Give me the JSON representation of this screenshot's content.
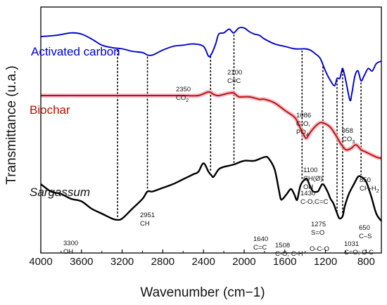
{
  "chart_data": {
    "type": "line",
    "xlabel": "Wavenumber (cm−1)",
    "ylabel": "Transmittance (u.a.)",
    "xlim": [
      4000,
      650
    ],
    "x_reversed": true,
    "ylim": [
      0,
      100
    ],
    "y_ticks_shown": false,
    "x_ticks": [
      4000,
      3600,
      3200,
      2800,
      2400,
      2000,
      1600,
      1200,
      800
    ],
    "series": [
      {
        "name": "Activated carbon",
        "color": "#0000cc",
        "points": [
          [
            4000,
            88
          ],
          [
            3850,
            88.5
          ],
          [
            3700,
            89.5
          ],
          [
            3600,
            89
          ],
          [
            3500,
            87
          ],
          [
            3400,
            84.5
          ],
          [
            3300,
            83.5
          ],
          [
            3200,
            83
          ],
          [
            3100,
            82
          ],
          [
            3000,
            81.5
          ],
          [
            2950,
            80.5
          ],
          [
            2900,
            80.5
          ],
          [
            2800,
            82.5
          ],
          [
            2700,
            84
          ],
          [
            2600,
            84.5
          ],
          [
            2500,
            85
          ],
          [
            2400,
            84
          ],
          [
            2350,
            80
          ],
          [
            2320,
            81
          ],
          [
            2280,
            85
          ],
          [
            2250,
            89
          ],
          [
            2200,
            89.5
          ],
          [
            2150,
            91
          ],
          [
            2120,
            90
          ],
          [
            2100,
            89.5
          ],
          [
            2050,
            91.5
          ],
          [
            2000,
            91.5
          ],
          [
            1950,
            90
          ],
          [
            1900,
            89
          ],
          [
            1850,
            88.5
          ],
          [
            1800,
            87
          ],
          [
            1700,
            85
          ],
          [
            1600,
            84
          ],
          [
            1500,
            83
          ],
          [
            1400,
            83
          ],
          [
            1350,
            82.5
          ],
          [
            1300,
            81
          ],
          [
            1250,
            79
          ],
          [
            1200,
            74
          ],
          [
            1150,
            70
          ],
          [
            1110,
            68
          ],
          [
            1086,
            71
          ],
          [
            1060,
            71
          ],
          [
            1040,
            74
          ],
          [
            1030,
            75
          ],
          [
            1010,
            72
          ],
          [
            990,
            68
          ],
          [
            958,
            62
          ],
          [
            940,
            65
          ],
          [
            910,
            72
          ],
          [
            880,
            74
          ],
          [
            850,
            70
          ],
          [
            820,
            72
          ],
          [
            780,
            75
          ],
          [
            740,
            74
          ],
          [
            700,
            77
          ],
          [
            650,
            78
          ]
        ]
      },
      {
        "name": "Biochar",
        "color": "#bb1100",
        "points": [
          [
            4000,
            64
          ],
          [
            3800,
            64
          ],
          [
            3600,
            64
          ],
          [
            3400,
            64
          ],
          [
            3200,
            64
          ],
          [
            3000,
            64
          ],
          [
            2800,
            64
          ],
          [
            2600,
            64
          ],
          [
            2450,
            64
          ],
          [
            2350,
            65.5
          ],
          [
            2300,
            64.5
          ],
          [
            2250,
            64
          ],
          [
            2150,
            65
          ],
          [
            2100,
            65
          ],
          [
            2050,
            63.5
          ],
          [
            1950,
            63.5
          ],
          [
            1850,
            62.5
          ],
          [
            1800,
            62.5
          ],
          [
            1700,
            61
          ],
          [
            1600,
            58
          ],
          [
            1500,
            55
          ],
          [
            1450,
            51
          ],
          [
            1400,
            47
          ],
          [
            1380,
            47
          ],
          [
            1350,
            49
          ],
          [
            1300,
            51.5
          ],
          [
            1250,
            53
          ],
          [
            1200,
            52.5
          ],
          [
            1150,
            51
          ],
          [
            1100,
            48
          ],
          [
            1050,
            44.5
          ],
          [
            1000,
            42
          ],
          [
            950,
            42.5
          ],
          [
            900,
            44
          ],
          [
            850,
            42
          ],
          [
            800,
            41
          ],
          [
            700,
            39
          ],
          [
            650,
            38.5
          ]
        ]
      },
      {
        "name": "Sargassum",
        "color": "#000000",
        "points": [
          [
            4000,
            28
          ],
          [
            3900,
            25
          ],
          [
            3800,
            24
          ],
          [
            3700,
            22
          ],
          [
            3600,
            21
          ],
          [
            3500,
            18
          ],
          [
            3400,
            16
          ],
          [
            3300,
            14
          ],
          [
            3250,
            13.5
          ],
          [
            3200,
            14
          ],
          [
            3100,
            18
          ],
          [
            3000,
            22
          ],
          [
            2951,
            25
          ],
          [
            2900,
            25
          ],
          [
            2800,
            26.5
          ],
          [
            2700,
            28
          ],
          [
            2600,
            30
          ],
          [
            2500,
            32
          ],
          [
            2450,
            33
          ],
          [
            2400,
            36.5
          ],
          [
            2350,
            33
          ],
          [
            2320,
            31.5
          ],
          [
            2300,
            31
          ],
          [
            2250,
            34
          ],
          [
            2200,
            35
          ],
          [
            2100,
            36
          ],
          [
            2000,
            37.5
          ],
          [
            1900,
            37.5
          ],
          [
            1800,
            39
          ],
          [
            1760,
            38.5
          ],
          [
            1700,
            34
          ],
          [
            1660,
            26
          ],
          [
            1640,
            22
          ],
          [
            1620,
            22
          ],
          [
            1580,
            24
          ],
          [
            1540,
            26
          ],
          [
            1508,
            24
          ],
          [
            1480,
            21.5
          ],
          [
            1460,
            25
          ],
          [
            1440,
            28
          ],
          [
            1400,
            30
          ],
          [
            1380,
            30
          ],
          [
            1350,
            27
          ],
          [
            1320,
            25
          ],
          [
            1275,
            25
          ],
          [
            1260,
            26
          ],
          [
            1225,
            28
          ],
          [
            1180,
            25
          ],
          [
            1150,
            22
          ],
          [
            1120,
            20
          ],
          [
            1080,
            15.5
          ],
          [
            1060,
            14
          ],
          [
            1031,
            15
          ],
          [
            1010,
            19
          ],
          [
            970,
            24
          ],
          [
            920,
            28
          ],
          [
            880,
            31
          ],
          [
            850,
            31
          ],
          [
            800,
            29
          ],
          [
            750,
            23
          ],
          [
            700,
            16
          ],
          [
            650,
            13
          ]
        ]
      }
    ],
    "labels": {
      "activated": "Activated carbon",
      "biochar": "Biochar",
      "sargassum": "Sargassum"
    },
    "annotations": [
      {
        "lines": [
          "3300",
          "OH"
        ],
        "wavenumber": 3245,
        "sub": null
      },
      {
        "lines": [
          "2951",
          "CH"
        ],
        "wavenumber": 2951,
        "sub": null
      },
      {
        "lines": [
          "2350",
          "CO"
        ],
        "wavenumber": 2330,
        "sub": "2"
      },
      {
        "lines": [
          "2100",
          "C≡C"
        ],
        "wavenumber": 2100,
        "sub": null
      },
      {
        "lines": [
          "1640",
          "C=C"
        ],
        "wavenumber": 1640,
        "sub": null
      },
      {
        "lines": [
          "1508",
          "C-O; C-H"
        ],
        "wavenumber": 1508,
        "sub": null
      },
      {
        "lines": [
          "1430",
          "C-O,C=C"
        ],
        "wavenumber": 1430,
        "sub": null
      },
      {
        "lines": [
          "1275",
          "S=O"
        ],
        "wavenumber": 1275,
        "sub": null
      },
      {
        "lines": [
          "O-C-O"
        ],
        "wavenumber": 1160,
        "sub": null
      },
      {
        "lines": [
          "1100",
          "CH(Ø)",
          "OH"
        ],
        "wavenumber": 1100,
        "sub": null
      },
      {
        "lines": [
          "1086",
          "C-O,",
          "PO"
        ],
        "wavenumber": 1086,
        "sub": "4"
      },
      {
        "lines": [
          "1031",
          "C=O; C-C"
        ],
        "wavenumber": 1031,
        "sub": null
      },
      {
        "lines": [
          "958",
          "CO"
        ],
        "wavenumber": 958,
        "sub": "3"
      },
      {
        "lines": [
          "850",
          "CH-H"
        ],
        "wavenumber": 850,
        "sub": "2"
      },
      {
        "lines": [
          "650",
          "C–S"
        ],
        "wavenumber": 650,
        "sub": null
      }
    ],
    "dotted_markers": [
      3245,
      2951,
      2330,
      2100,
      1430,
      1225,
      1086,
      1031,
      850
    ]
  }
}
